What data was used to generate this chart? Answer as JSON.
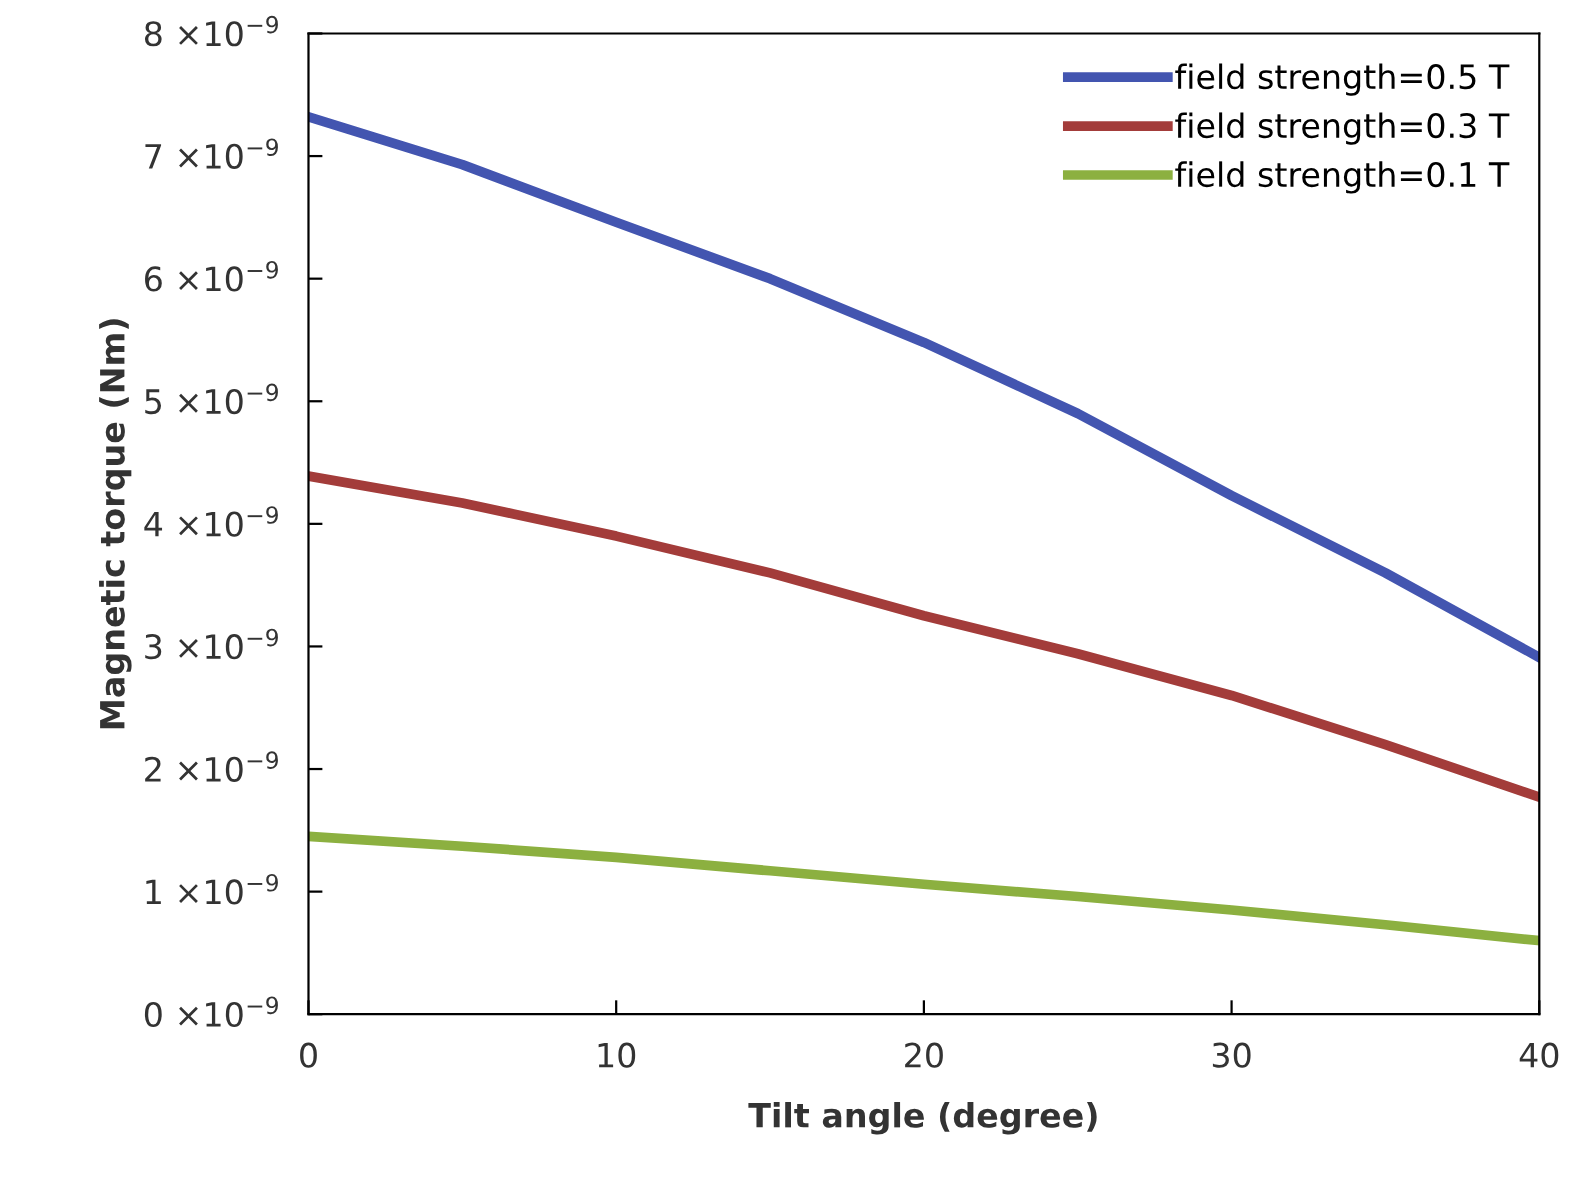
{
  "chart_data": {
    "type": "line",
    "xlabel": "Tilt angle (degree)",
    "ylabel": "Magnetic torque (Nm)",
    "x": [
      0,
      5,
      10,
      15,
      20,
      25,
      30,
      35,
      40
    ],
    "series": [
      {
        "name": "field strength=0.5 T",
        "color": "#4355b0",
        "values": [
          7.32e-09,
          6.93e-09,
          6.46e-09,
          6e-09,
          5.48e-09,
          4.9e-09,
          4.23e-09,
          3.6e-09,
          2.91e-09
        ]
      },
      {
        "name": "field strength=0.3 T",
        "color": "#a33c3a",
        "values": [
          4.39e-09,
          4.17e-09,
          3.9e-09,
          3.6e-09,
          3.25e-09,
          2.94e-09,
          2.6e-09,
          2.2e-09,
          1.77e-09
        ]
      },
      {
        "name": "field strength=0.1 T",
        "color": "#8cb040",
        "values": [
          1.45e-09,
          1.37e-09,
          1.28e-09,
          1.17e-09,
          1.06e-09,
          9.6e-10,
          8.5e-10,
          7.3e-10,
          6e-10
        ]
      }
    ],
    "xlim": [
      0,
      40
    ],
    "xticks": [
      0,
      10,
      20,
      30,
      40
    ],
    "ylim": [
      0,
      8e-09
    ],
    "yticks": [
      {
        "value": 0,
        "label": "0 ×10$^{−9}$"
      },
      {
        "value": 1e-09,
        "label": "1 ×10$^{−9}$"
      },
      {
        "value": 2e-09,
        "label": "2 ×10$^{−9}$"
      },
      {
        "value": 3e-09,
        "label": "3 ×10$^{−9}$"
      },
      {
        "value": 4e-09,
        "label": "4 ×10$^{−9}$"
      },
      {
        "value": 5e-09,
        "label": "5 ×10$^{−9}$"
      },
      {
        "value": 6e-09,
        "label": "6 ×10$^{−9}$"
      },
      {
        "value": 7e-09,
        "label": "7 ×10$^{−9}$"
      },
      {
        "value": 8e-09,
        "label": "8 ×10$^{−9}$"
      }
    ],
    "grid": false,
    "legend": "top right",
    "marker": "none",
    "line_style": "solid"
  }
}
